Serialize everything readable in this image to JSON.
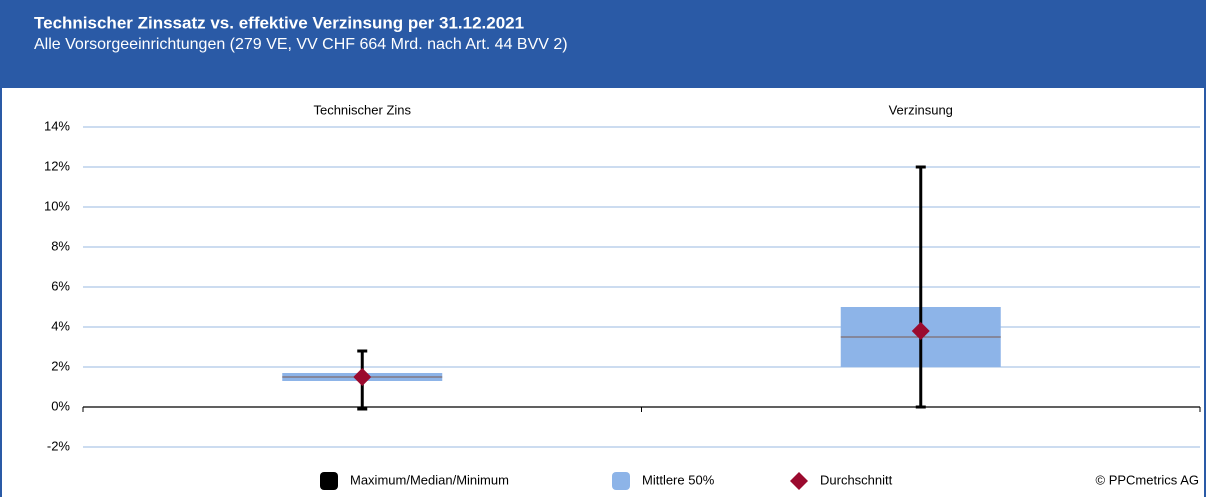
{
  "chart_data": {
    "type": "box",
    "title": "Technischer Zinssatz vs. effektive Verzinsung per 31.12.2021",
    "subtitle": "Alle Vorsorgeeinrichtungen (279 VE, VV CHF 664 Mrd. nach Art. 44 BVV 2)",
    "categories": [
      "Technischer Zins",
      "Verzinsung"
    ],
    "series": [
      {
        "name": "Maximum/Median/Minimum",
        "color": "#000000",
        "max": [
          2.8,
          12.0
        ],
        "median": [
          1.5,
          3.5
        ],
        "min": [
          -0.1,
          0.0
        ]
      },
      {
        "name": "Mittlere 50%",
        "color": "#8db4e8",
        "q1": [
          1.3,
          2.0
        ],
        "q3": [
          1.7,
          5.0
        ]
      },
      {
        "name": "Durchschnitt",
        "color": "#9b0a2e",
        "values": [
          1.5,
          3.8
        ]
      }
    ],
    "ylim": [
      -2,
      14
    ],
    "yticks": [
      {
        "value": -2,
        "label": "-2%"
      },
      {
        "value": 0,
        "label": "0%"
      },
      {
        "value": 2,
        "label": "2%"
      },
      {
        "value": 4,
        "label": "4%"
      },
      {
        "value": 6,
        "label": "6%"
      },
      {
        "value": 8,
        "label": "8%"
      },
      {
        "value": 10,
        "label": "10%"
      },
      {
        "value": 12,
        "label": "12%"
      },
      {
        "value": 14,
        "label": "14%"
      }
    ],
    "grid": true,
    "source": "© PPCmetrics AG"
  }
}
